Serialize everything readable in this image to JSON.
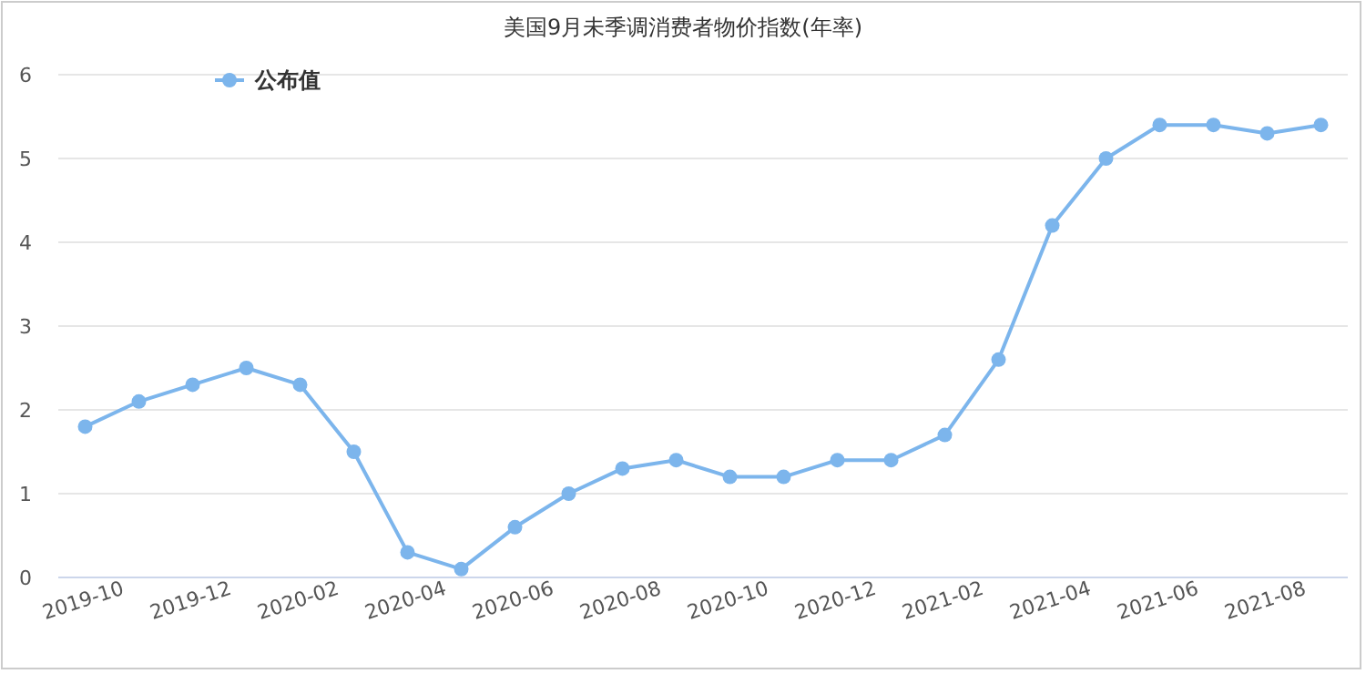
{
  "chart_data": {
    "type": "line",
    "title": "美国9月未季调消费者物价指数(年率)",
    "categories": [
      "2019-10",
      null,
      "2019-12",
      null,
      "2020-02",
      null,
      "2020-04",
      null,
      "2020-06",
      null,
      "2020-08",
      null,
      "2020-10",
      null,
      "2020-12",
      null,
      "2021-02",
      null,
      "2021-04",
      null,
      "2021-06",
      null,
      "2021-08",
      null
    ],
    "series": [
      {
        "name": "公布值",
        "color": "#7cb5ec",
        "values": [
          1.8,
          2.1,
          2.3,
          2.5,
          2.3,
          1.5,
          0.3,
          0.1,
          0.6,
          1.0,
          1.3,
          1.4,
          1.2,
          1.2,
          1.4,
          1.4,
          1.7,
          2.6,
          4.2,
          5.0,
          5.4,
          5.4,
          5.3,
          5.4
        ]
      }
    ],
    "ylim": [
      0,
      6
    ],
    "yticks": [
      0,
      1,
      2,
      3,
      4,
      5,
      6
    ],
    "grid": "y",
    "legend": "top left",
    "marker": "circle",
    "line_style": "solid"
  }
}
